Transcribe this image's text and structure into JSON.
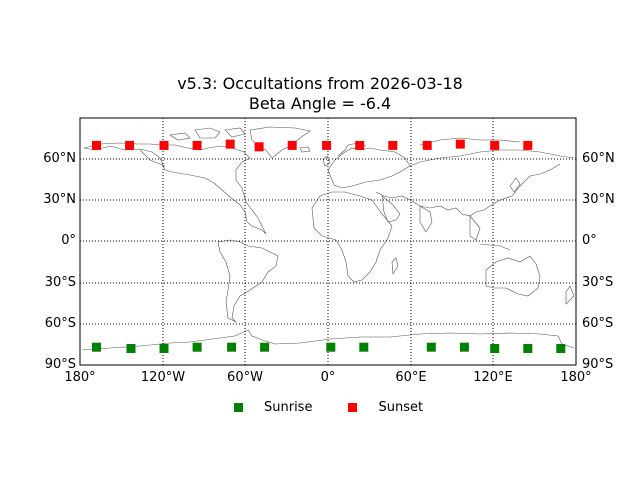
{
  "chart_data": {
    "type": "scatter",
    "title": "v5.3: Occultations from 2026-03-18",
    "subtitle": "Beta Angle = -6.4",
    "projection": "equirectangular",
    "xlabel": "",
    "ylabel": "",
    "xlim": [
      -180,
      180
    ],
    "ylim": [
      -90,
      90
    ],
    "grid": "dotted",
    "legend_position": "below",
    "x_ticks": [
      "180°",
      "120°W",
      "60°W",
      "0°",
      "60°E",
      "120°E",
      "180°"
    ],
    "x_tick_values": [
      -180,
      -120,
      -60,
      0,
      60,
      120,
      180
    ],
    "y_ticks": [
      "90°S",
      "60°S",
      "30°S",
      "0°",
      "30°N",
      "60°N"
    ],
    "y_tick_values": [
      -90,
      -60,
      -30,
      0,
      30,
      60
    ],
    "series": [
      {
        "name": "Sunrise",
        "color": "#008000",
        "marker": "square",
        "points": [
          {
            "lon": -168,
            "lat": -77
          },
          {
            "lon": -143,
            "lat": -78
          },
          {
            "lon": -119,
            "lat": -78
          },
          {
            "lon": -95,
            "lat": -77
          },
          {
            "lon": -70,
            "lat": -77
          },
          {
            "lon": -46,
            "lat": -77
          },
          {
            "lon": 2,
            "lat": -77
          },
          {
            "lon": 26,
            "lat": -77
          },
          {
            "lon": 75,
            "lat": -77
          },
          {
            "lon": 99,
            "lat": -77
          },
          {
            "lon": 121,
            "lat": -78
          },
          {
            "lon": 145,
            "lat": -78
          },
          {
            "lon": 169,
            "lat": -78
          }
        ]
      },
      {
        "name": "Sunset",
        "color": "#ff0000",
        "marker": "square",
        "points": [
          {
            "lon": -168,
            "lat": 70
          },
          {
            "lon": -144,
            "lat": 70
          },
          {
            "lon": -119,
            "lat": 70
          },
          {
            "lon": -95,
            "lat": 70
          },
          {
            "lon": -71,
            "lat": 71
          },
          {
            "lon": -50,
            "lat": 69
          },
          {
            "lon": -26,
            "lat": 70
          },
          {
            "lon": -1,
            "lat": 70
          },
          {
            "lon": 23,
            "lat": 70
          },
          {
            "lon": 47,
            "lat": 70
          },
          {
            "lon": 72,
            "lat": 70
          },
          {
            "lon": 96,
            "lat": 71
          },
          {
            "lon": 121,
            "lat": 70
          },
          {
            "lon": 145,
            "lat": 70
          }
        ]
      }
    ]
  },
  "legend": {
    "items": [
      {
        "label": "Sunrise",
        "color": "#008000"
      },
      {
        "label": "Sunset",
        "color": "#ff0000"
      }
    ]
  }
}
